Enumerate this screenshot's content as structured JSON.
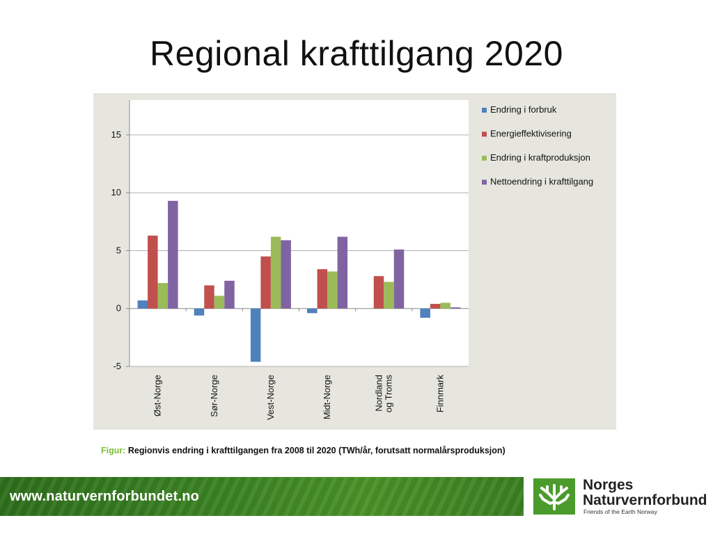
{
  "slide": {
    "title": "Regional krafttilgang 2020",
    "caption_prefix": "Figur:",
    "caption_text": "Regionvis endring i krafttilgangen fra 2008 til 2020 (TWh/år, forutsatt normalårsproduksjon)"
  },
  "footer": {
    "url": "www.naturvernforbundet.no",
    "logo_name_line1": "Norges",
    "logo_name_line2": "Naturvernforbund",
    "logo_subtitle": "Friends of the Earth Norway"
  },
  "colors": {
    "series": [
      "#4f81bd",
      "#c0504d",
      "#9bbb59",
      "#8064a2"
    ],
    "chart_panel_bg": "#e6e6df",
    "plot_bg": "#ffffff",
    "gridline": "#b0b0b0",
    "footer_green": "#3c8424",
    "caption_prefix": "#7dbf3a"
  },
  "chart_data": {
    "type": "bar",
    "categories": [
      "Øst-Norge",
      "Sør-Norge",
      "Vest-Norge",
      "Midt-Norge",
      "Nordland og Troms",
      "Finnmark"
    ],
    "category_label_lines": [
      [
        "Øst-Norge"
      ],
      [
        "Sør-Norge"
      ],
      [
        "Vest-Norge"
      ],
      [
        "Midt-Norge"
      ],
      [
        "Nordland",
        "og Troms"
      ],
      [
        "Finnmark"
      ]
    ],
    "series": [
      {
        "name": "Endring i forbruk",
        "values": [
          0.7,
          -0.6,
          -4.6,
          -0.4,
          0.0,
          -0.8
        ]
      },
      {
        "name": "Energieffektivisering",
        "values": [
          6.3,
          2.0,
          4.5,
          3.4,
          2.8,
          0.4
        ]
      },
      {
        "name": "Endring i kraftproduksjon",
        "values": [
          2.2,
          1.1,
          6.2,
          3.2,
          2.3,
          0.5
        ]
      },
      {
        "name": "Nettoendring i krafttilgang",
        "values": [
          9.3,
          2.4,
          5.9,
          6.2,
          5.1,
          0.1
        ]
      }
    ],
    "ylim": [
      -5,
      18
    ],
    "yticks": [
      -5,
      0,
      5,
      10,
      15
    ],
    "grid": true,
    "legend_position": "right",
    "title": "",
    "xlabel": "",
    "ylabel": ""
  }
}
